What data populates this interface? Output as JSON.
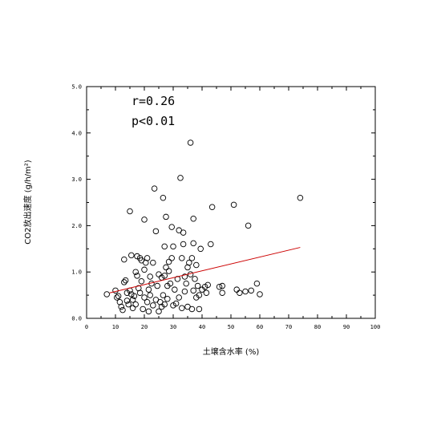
{
  "chart_data": {
    "type": "scatter",
    "title": "",
    "xlabel": "土壌含水率 (%)",
    "ylabel": "CO2放出速度 (g/h/m²)",
    "xlim": [
      0,
      100
    ],
    "ylim": [
      0,
      5
    ],
    "x_ticks": [
      "0",
      "10",
      "20",
      "30",
      "40",
      "50",
      "60",
      "70",
      "80",
      "90",
      "100"
    ],
    "y_ticks": [
      "0.0",
      "1.0",
      "2.0",
      "3.0",
      "4.0",
      "5.0"
    ],
    "annotations": [
      "r=0.26",
      "p<0.01"
    ],
    "grid": false,
    "trend_color": "#cc0000",
    "point_color": "#000000",
    "trendline": {
      "x": [
        8,
        74
      ],
      "y": [
        0.55,
        1.53
      ]
    },
    "points": [
      [
        7,
        0.52
      ],
      [
        10,
        0.6
      ],
      [
        10.5,
        0.45
      ],
      [
        11,
        0.48
      ],
      [
        11.5,
        0.35
      ],
      [
        12,
        0.25
      ],
      [
        12.5,
        0.18
      ],
      [
        13,
        0.78
      ],
      [
        13,
        1.27
      ],
      [
        13.5,
        0.82
      ],
      [
        14,
        0.38
      ],
      [
        14,
        0.55
      ],
      [
        14.5,
        0.3
      ],
      [
        15,
        2.31
      ],
      [
        15,
        0.6
      ],
      [
        15.5,
        1.36
      ],
      [
        15.5,
        0.52
      ],
      [
        16,
        0.4
      ],
      [
        16,
        0.22
      ],
      [
        16.5,
        0.48
      ],
      [
        17,
        1.0
      ],
      [
        17,
        0.3
      ],
      [
        17.5,
        1.34
      ],
      [
        17.5,
        0.92
      ],
      [
        18,
        0.65
      ],
      [
        18.5,
        0.55
      ],
      [
        18.5,
        1.3
      ],
      [
        19,
        1.25
      ],
      [
        19,
        0.8
      ],
      [
        19.5,
        0.2
      ],
      [
        20,
        0.45
      ],
      [
        20,
        1.05
      ],
      [
        20,
        2.13
      ],
      [
        20.5,
        1.2
      ],
      [
        21,
        1.3
      ],
      [
        21,
        0.35
      ],
      [
        21.5,
        0.62
      ],
      [
        21.5,
        0.15
      ],
      [
        22,
        0.9
      ],
      [
        22,
        0.5
      ],
      [
        22.5,
        0.75
      ],
      [
        23,
        0.28
      ],
      [
        23,
        1.2
      ],
      [
        23.5,
        2.8
      ],
      [
        24,
        1.88
      ],
      [
        24,
        0.4
      ],
      [
        24.5,
        0.7
      ],
      [
        25,
        0.95
      ],
      [
        25,
        0.15
      ],
      [
        25.5,
        0.35
      ],
      [
        26,
        0.88
      ],
      [
        26,
        0.25
      ],
      [
        26.5,
        2.6
      ],
      [
        26.5,
        0.5
      ],
      [
        27,
        1.55
      ],
      [
        27,
        0.92
      ],
      [
        27,
        0.3
      ],
      [
        27.5,
        1.1
      ],
      [
        27.5,
        2.19
      ],
      [
        28,
        0.7
      ],
      [
        28,
        0.42
      ],
      [
        28.5,
        1.02
      ],
      [
        28.5,
        1.22
      ],
      [
        29,
        0.75
      ],
      [
        29.5,
        1.97
      ],
      [
        29.5,
        1.3
      ],
      [
        30,
        1.55
      ],
      [
        30,
        0.28
      ],
      [
        30.5,
        0.62
      ],
      [
        31,
        0.32
      ],
      [
        31.5,
        0.85
      ],
      [
        32,
        1.9
      ],
      [
        32,
        0.45
      ],
      [
        32.5,
        3.03
      ],
      [
        33,
        1.3
      ],
      [
        33,
        0.22
      ],
      [
        33.5,
        1.85
      ],
      [
        33.5,
        1.6
      ],
      [
        34,
        0.58
      ],
      [
        34,
        0.9
      ],
      [
        34.5,
        0.75
      ],
      [
        35,
        1.1
      ],
      [
        35,
        0.25
      ],
      [
        35.5,
        1.2
      ],
      [
        36,
        3.79
      ],
      [
        36,
        0.95
      ],
      [
        36.5,
        1.3
      ],
      [
        36.5,
        0.2
      ],
      [
        37,
        2.15
      ],
      [
        37,
        1.62
      ],
      [
        37,
        0.6
      ],
      [
        37.5,
        0.85
      ],
      [
        38,
        1.15
      ],
      [
        38,
        0.45
      ],
      [
        38.5,
        0.7
      ],
      [
        39,
        0.2
      ],
      [
        39,
        0.5
      ],
      [
        39.5,
        1.5
      ],
      [
        40,
        0.62
      ],
      [
        41,
        0.68
      ],
      [
        41.5,
        0.55
      ],
      [
        42,
        0.72
      ],
      [
        43,
        1.6
      ],
      [
        43.5,
        2.4
      ],
      [
        46,
        0.68
      ],
      [
        47,
        0.55
      ],
      [
        47,
        0.7
      ],
      [
        51,
        2.45
      ],
      [
        52,
        0.62
      ],
      [
        53,
        0.55
      ],
      [
        55,
        0.58
      ],
      [
        56,
        2.0
      ],
      [
        57,
        0.6
      ],
      [
        59,
        0.75
      ],
      [
        60,
        0.52
      ],
      [
        74,
        2.6
      ]
    ]
  }
}
